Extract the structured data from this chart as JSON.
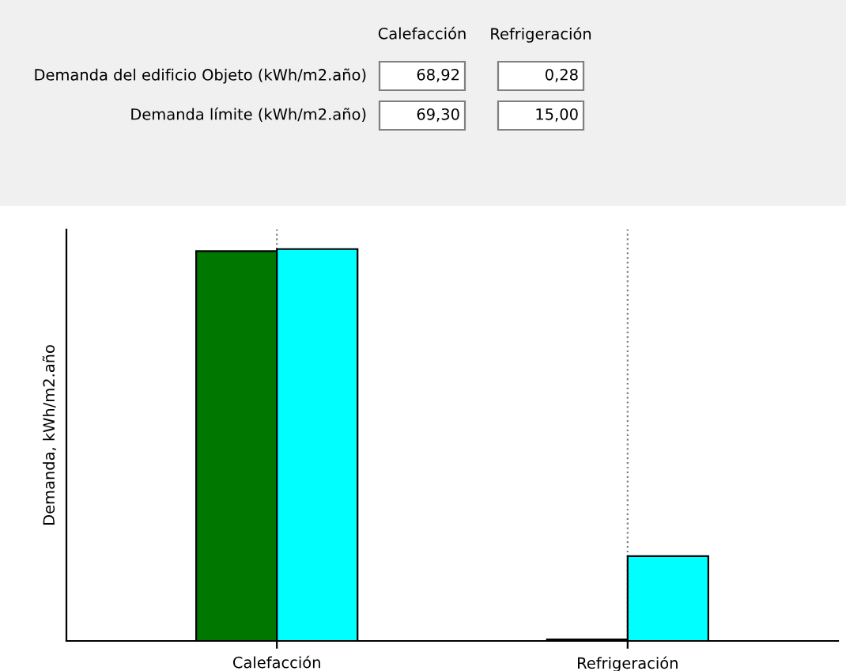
{
  "chart_data": {
    "type": "bar",
    "ylabel": "Demanda, kWh/m2.año",
    "categories": [
      "Calefacción",
      "Refrigeración"
    ],
    "annotations": [
      "Demanda del edificio Objeto (kWh/m2.año)",
      "Demanda límite (kWh/m2.año)"
    ],
    "series": [
      {
        "color": "#007800",
        "values": [
          68.92,
          0.28
        ],
        "value_labels": [
          "68,92",
          "0,28"
        ]
      },
      {
        "color": "#00ffff",
        "values": [
          69.3,
          15.0
        ],
        "value_labels": [
          "69,30",
          "15,00"
        ]
      }
    ],
    "grid": "x"
  }
}
